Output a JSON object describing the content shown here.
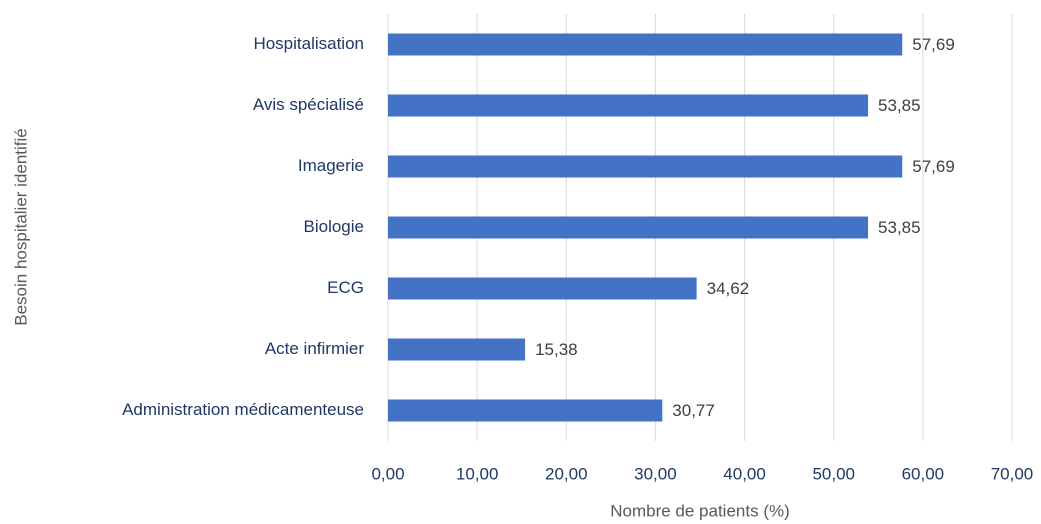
{
  "chart_data": {
    "type": "bar",
    "orientation": "horizontal",
    "categories": [
      "Hospitalisation",
      "Avis spécialisé",
      "Imagerie",
      "Biologie",
      "ECG",
      "Acte infirmier",
      "Administration médicamenteuse"
    ],
    "values": [
      57.69,
      53.85,
      57.69,
      53.85,
      34.62,
      15.38,
      30.77
    ],
    "value_labels": [
      "57,69",
      "53,85",
      "57,69",
      "53,85",
      "34,62",
      "15,38",
      "30,77"
    ],
    "color": "#4472c4",
    "xlim": [
      0,
      70
    ],
    "xticks": [
      {
        "value": 0,
        "label": "0,00"
      },
      {
        "value": 10,
        "label": "10,00"
      },
      {
        "value": 20,
        "label": "20,00"
      },
      {
        "value": 30,
        "label": "30,00"
      },
      {
        "value": 40,
        "label": "40,00"
      },
      {
        "value": 50,
        "label": "50,00"
      },
      {
        "value": 60,
        "label": "60,00"
      },
      {
        "value": 70,
        "label": "70,00"
      }
    ],
    "xlabel": "Nombre de patients (%)",
    "ylabel": "Besoin hospitalier identifié",
    "grid": true
  }
}
